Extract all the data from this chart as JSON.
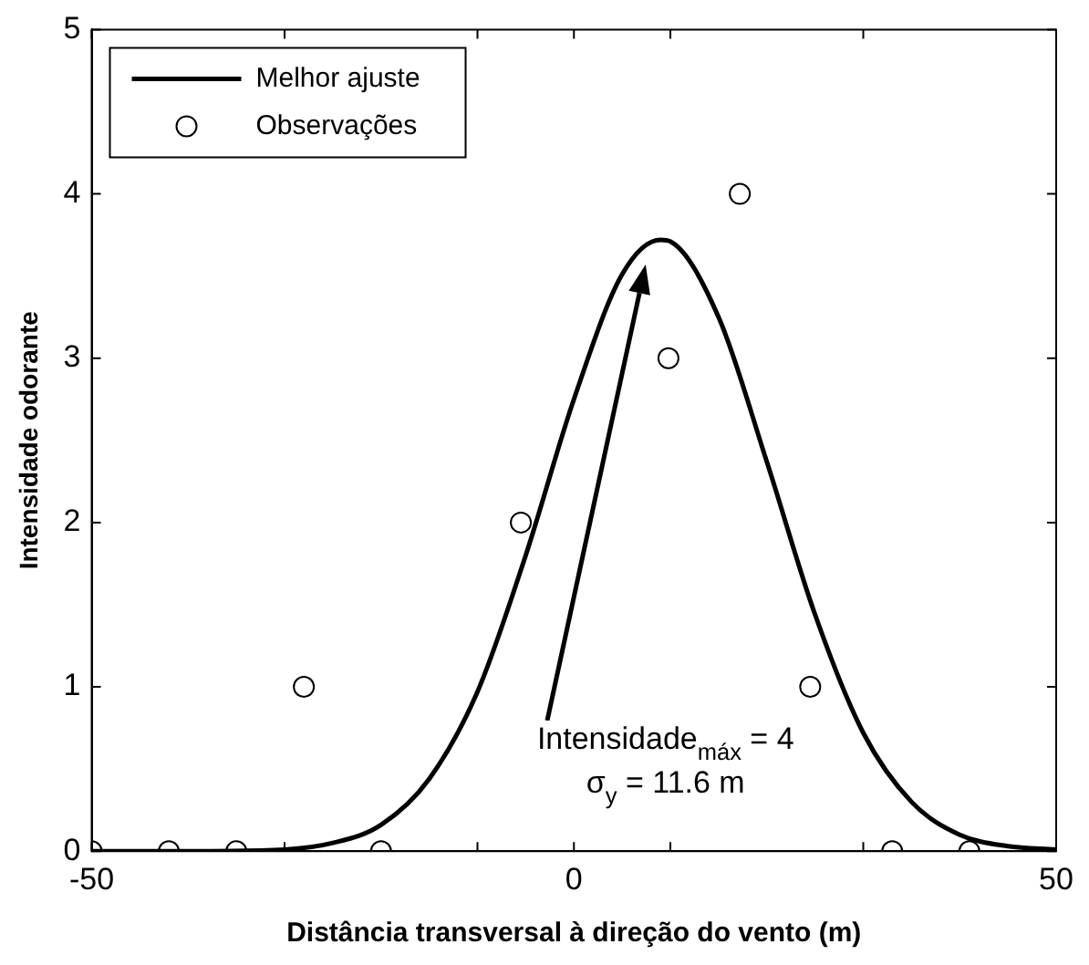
{
  "chart_data": {
    "type": "scatter",
    "xlabel": "Distância transversal à direção do vento (m)",
    "ylabel": "Intensidade odorante",
    "xlim": [
      -50,
      50
    ],
    "ylim": [
      0,
      5
    ],
    "xticks": [
      -50,
      {
        "value": -30,
        "label": null
      },
      {
        "value": -10,
        "label": null
      },
      0,
      {
        "value": 10,
        "label": null
      },
      {
        "value": 30,
        "label": null
      },
      50
    ],
    "yticks": [
      0,
      1,
      2,
      3,
      4,
      5
    ],
    "grid": false,
    "legend": "top left",
    "series": [
      {
        "name": "Melhor ajuste",
        "type": "line",
        "color": "#000000",
        "marker": "none",
        "line_style": "solid",
        "x": [
          -50,
          -40,
          -30,
          -25,
          -20,
          -15,
          -10,
          -5,
          0,
          5,
          9,
          10,
          15,
          20,
          25,
          30,
          35,
          40,
          45,
          50
        ],
        "values": [
          0,
          0,
          0.01,
          0.05,
          0.16,
          0.44,
          0.97,
          1.8,
          2.75,
          3.51,
          3.72,
          3.71,
          3.25,
          2.37,
          1.44,
          0.72,
          0.3,
          0.1,
          0.03,
          0.01
        ]
      },
      {
        "name": "Observações",
        "type": "scatter",
        "color": "#000000",
        "marker": "circle",
        "x": [
          -50,
          -42,
          -35,
          -28,
          -20,
          -5.5,
          9.8,
          17.2,
          24.5,
          33,
          41
        ],
        "values": [
          0,
          0,
          0,
          1,
          0,
          2,
          3,
          4,
          1,
          0,
          0
        ]
      }
    ],
    "annotations": [
      "Intensidade$_{máx}$ = 4",
      "σ$_{y}$ = 11.6 m"
    ]
  }
}
